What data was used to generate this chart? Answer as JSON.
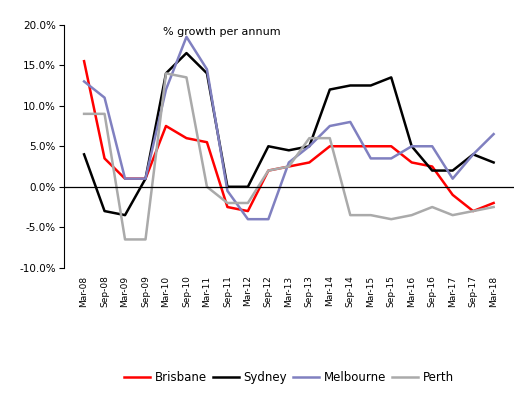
{
  "labels": [
    "Mar-08",
    "Sep-08",
    "Mar-09",
    "Sep-09",
    "Mar-10",
    "Sep-10",
    "Mar-11",
    "Sep-11",
    "Mar-12",
    "Sep-12",
    "Mar-13",
    "Sep-13",
    "Mar-14",
    "Sep-14",
    "Mar-15",
    "Sep-15",
    "Mar-16",
    "Sep-16",
    "Mar-17",
    "Sep-17",
    "Mar-18"
  ],
  "brisbane": [
    0.155,
    0.035,
    0.01,
    0.01,
    0.075,
    0.06,
    0.055,
    -0.025,
    -0.03,
    0.02,
    0.025,
    0.03,
    0.05,
    0.05,
    0.05,
    0.05,
    0.03,
    0.025,
    -0.01,
    -0.03,
    -0.02
  ],
  "sydney": [
    0.04,
    -0.03,
    -0.035,
    0.01,
    0.14,
    0.165,
    0.14,
    0.0,
    0.0,
    0.05,
    0.045,
    0.05,
    0.12,
    0.125,
    0.125,
    0.135,
    0.05,
    0.02,
    0.02,
    0.04,
    0.03
  ],
  "melbourne": [
    0.13,
    0.11,
    0.01,
    0.01,
    0.12,
    0.185,
    0.145,
    -0.005,
    -0.04,
    -0.04,
    0.03,
    0.05,
    0.075,
    0.08,
    0.035,
    0.035,
    0.05,
    0.05,
    0.01,
    0.04,
    0.065
  ],
  "perth": [
    0.09,
    0.09,
    -0.065,
    -0.065,
    0.14,
    0.135,
    0.0,
    -0.02,
    -0.02,
    0.02,
    0.025,
    0.06,
    0.06,
    -0.035,
    -0.035,
    -0.04,
    -0.035,
    -0.025,
    -0.035,
    -0.03,
    -0.025
  ],
  "ylim": [
    -0.1,
    0.2
  ],
  "yticks": [
    -0.1,
    -0.05,
    0.0,
    0.05,
    0.1,
    0.15,
    0.2
  ],
  "ylabel": "% growth per annum",
  "brisbane_color": "#FF0000",
  "sydney_color": "#000000",
  "melbourne_color": "#8080C0",
  "perth_color": "#AAAAAA",
  "linewidth": 1.8
}
